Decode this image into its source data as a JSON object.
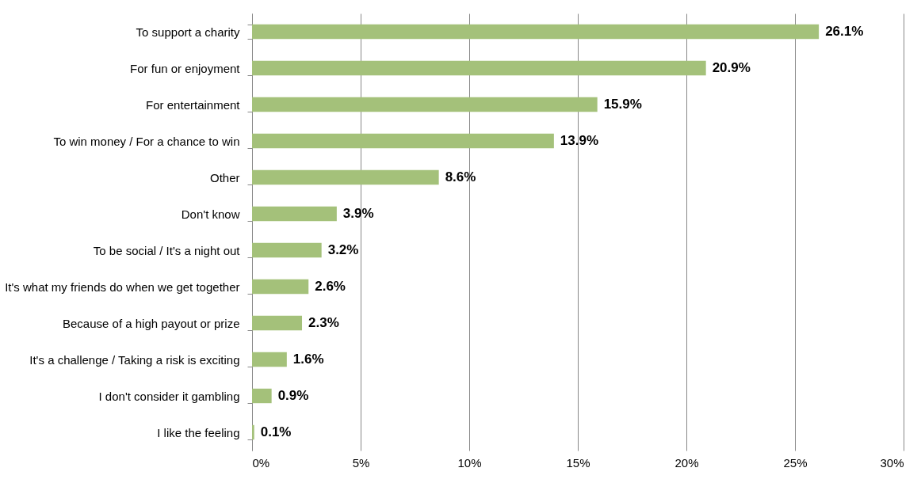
{
  "chart_data": {
    "type": "bar",
    "orientation": "horizontal",
    "categories": [
      "To support a charity",
      "For fun or enjoyment",
      "For entertainment",
      "To win money / For a chance to win",
      "Other",
      "Don't know",
      "To be social / It's a night out",
      "It's what my friends do when we get together",
      "Because of a high payout or prize",
      "It's a challenge / Taking a risk is exciting",
      "I don't consider it gambling",
      "I like the feeling"
    ],
    "values": [
      26.1,
      20.9,
      15.9,
      13.9,
      8.6,
      3.9,
      3.2,
      2.6,
      2.3,
      1.6,
      0.9,
      0.1
    ],
    "value_labels": [
      "26.1%",
      "20.9%",
      "15.9%",
      "13.9%",
      "8.6%",
      "3.9%",
      "3.2%",
      "2.6%",
      "2.3%",
      "1.6%",
      "0.9%",
      "0.1%"
    ],
    "color": "#a4c17a",
    "xlim": [
      0,
      30
    ],
    "xticks": [
      {
        "value": 0,
        "label": "0%"
      },
      {
        "value": 5,
        "label": "5%"
      },
      {
        "value": 10,
        "label": "10%"
      },
      {
        "value": 15,
        "label": "15%"
      },
      {
        "value": 20,
        "label": "20%"
      },
      {
        "value": 25,
        "label": "25%"
      },
      {
        "value": 30,
        "label": "30%"
      }
    ],
    "grid": "x"
  }
}
